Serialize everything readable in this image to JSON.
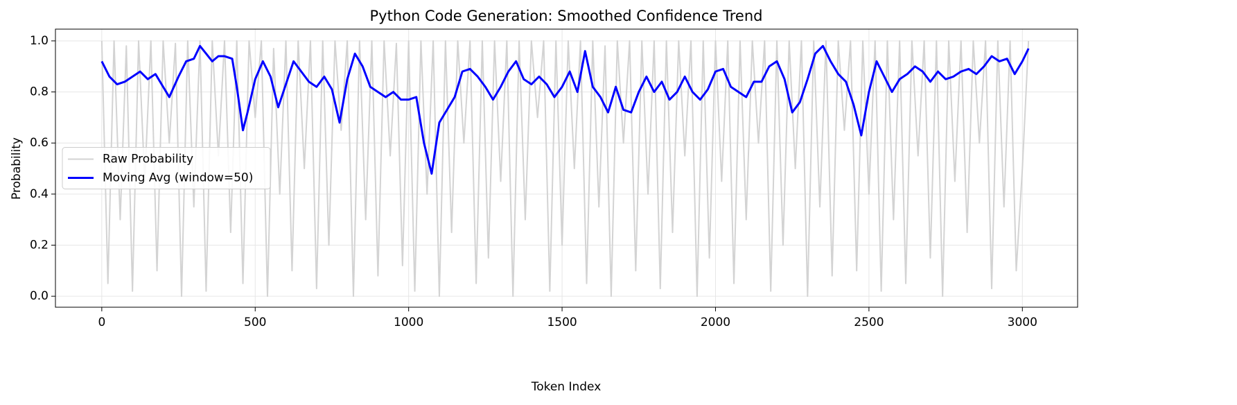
{
  "chart_data": {
    "type": "line",
    "title": "Python Code Generation: Smoothed Confidence Trend",
    "xlabel": "Token Index",
    "ylabel": "Probability",
    "xlim": [
      -151,
      3180
    ],
    "ylim": [
      -0.043,
      1.046
    ],
    "xticks": [
      0,
      500,
      1000,
      1500,
      2000,
      2500,
      3000
    ],
    "yticks": [
      {
        "value": 0,
        "label": "0.0"
      },
      0.2,
      0.4,
      0.6,
      0.8,
      {
        "value": 1,
        "label": "1.0"
      }
    ],
    "grid": true,
    "legend": "center left",
    "series": [
      {
        "name": "Raw Probability",
        "color": "#d3d3d3",
        "x": [
          0,
          20,
          40,
          60,
          80,
          100,
          120,
          140,
          160,
          180,
          200,
          220,
          240,
          260,
          280,
          300,
          320,
          340,
          360,
          380,
          400,
          420,
          440,
          460,
          480,
          500,
          520,
          540,
          560,
          580,
          600,
          620,
          640,
          660,
          680,
          700,
          720,
          740,
          760,
          780,
          800,
          820,
          840,
          860,
          880,
          900,
          920,
          940,
          960,
          980,
          1000,
          1020,
          1040,
          1060,
          1080,
          1100,
          1120,
          1140,
          1160,
          1180,
          1200,
          1220,
          1240,
          1260,
          1280,
          1300,
          1320,
          1340,
          1360,
          1380,
          1400,
          1420,
          1440,
          1460,
          1480,
          1500,
          1520,
          1540,
          1560,
          1580,
          1600,
          1620,
          1640,
          1660,
          1680,
          1700,
          1720,
          1740,
          1760,
          1780,
          1800,
          1820,
          1840,
          1860,
          1880,
          1900,
          1920,
          1940,
          1960,
          1980,
          2000,
          2020,
          2040,
          2060,
          2080,
          2100,
          2120,
          2140,
          2160,
          2180,
          2200,
          2220,
          2240,
          2260,
          2280,
          2300,
          2320,
          2340,
          2360,
          2380,
          2400,
          2420,
          2440,
          2460,
          2480,
          2500,
          2520,
          2540,
          2560,
          2580,
          2600,
          2620,
          2640,
          2660,
          2680,
          2700,
          2720,
          2740,
          2760,
          2780,
          2800,
          2820,
          2840,
          2860,
          2880,
          2900,
          2920,
          2940,
          2960,
          2980,
          3000,
          3020
        ],
        "values": [
          1.0,
          0.05,
          1.0,
          0.3,
          0.98,
          0.02,
          1.0,
          0.45,
          1.0,
          0.1,
          1.0,
          0.6,
          0.99,
          0.0,
          1.0,
          0.35,
          1.0,
          0.02,
          1.0,
          0.55,
          1.0,
          0.25,
          1.0,
          0.05,
          1.0,
          0.7,
          1.0,
          0.0,
          0.97,
          0.4,
          1.0,
          0.1,
          1.0,
          0.5,
          1.0,
          0.03,
          1.0,
          0.2,
          1.0,
          0.65,
          1.0,
          0.0,
          1.0,
          0.3,
          1.0,
          0.08,
          1.0,
          0.55,
          0.99,
          0.12,
          1.0,
          0.02,
          1.0,
          0.4,
          1.0,
          0.0,
          1.0,
          0.25,
          1.0,
          0.6,
          1.0,
          0.05,
          1.0,
          0.15,
          1.0,
          0.45,
          1.0,
          0.0,
          1.0,
          0.3,
          1.0,
          0.7,
          1.0,
          0.02,
          1.0,
          0.2,
          1.0,
          0.5,
          1.0,
          0.05,
          1.0,
          0.35,
          0.98,
          0.0,
          1.0,
          0.6,
          1.0,
          0.1,
          1.0,
          0.4,
          1.0,
          0.03,
          1.0,
          0.25,
          1.0,
          0.55,
          1.0,
          0.0,
          1.0,
          0.15,
          1.0,
          0.45,
          1.0,
          0.05,
          1.0,
          0.3,
          1.0,
          0.6,
          1.0,
          0.02,
          1.0,
          0.2,
          1.0,
          0.5,
          1.0,
          0.0,
          1.0,
          0.35,
          1.0,
          0.08,
          1.0,
          0.65,
          1.0,
          0.1,
          1.0,
          0.4,
          1.0,
          0.02,
          1.0,
          0.3,
          1.0,
          0.05,
          1.0,
          0.55,
          1.0,
          0.15,
          1.0,
          0.0,
          1.0,
          0.45,
          1.0,
          0.25,
          1.0,
          0.6,
          1.0,
          0.03,
          1.0,
          0.35,
          1.0,
          0.1,
          0.5,
          1.0
        ]
      },
      {
        "name": "Moving Avg (window=50)",
        "color": "#0000ff",
        "x": [
          0,
          25,
          50,
          75,
          100,
          125,
          150,
          175,
          200,
          220,
          250,
          275,
          300,
          320,
          340,
          360,
          380,
          400,
          425,
          440,
          460,
          475,
          500,
          525,
          550,
          575,
          600,
          625,
          650,
          675,
          700,
          725,
          750,
          775,
          800,
          825,
          850,
          875,
          900,
          925,
          950,
          975,
          1000,
          1025,
          1050,
          1075,
          1100,
          1125,
          1150,
          1175,
          1200,
          1225,
          1250,
          1275,
          1300,
          1325,
          1350,
          1375,
          1400,
          1425,
          1450,
          1475,
          1500,
          1525,
          1550,
          1575,
          1600,
          1625,
          1650,
          1675,
          1700,
          1725,
          1750,
          1775,
          1800,
          1825,
          1850,
          1875,
          1900,
          1925,
          1950,
          1975,
          2000,
          2025,
          2050,
          2075,
          2100,
          2125,
          2150,
          2175,
          2200,
          2225,
          2250,
          2275,
          2300,
          2325,
          2350,
          2375,
          2400,
          2425,
          2450,
          2475,
          2500,
          2525,
          2550,
          2575,
          2600,
          2625,
          2650,
          2675,
          2700,
          2725,
          2750,
          2775,
          2800,
          2825,
          2850,
          2875,
          2900,
          2925,
          2950,
          2975,
          3000,
          3020
        ],
        "values": [
          0.92,
          0.86,
          0.83,
          0.84,
          0.86,
          0.88,
          0.85,
          0.87,
          0.82,
          0.78,
          0.86,
          0.92,
          0.93,
          0.98,
          0.95,
          0.92,
          0.94,
          0.94,
          0.93,
          0.82,
          0.65,
          0.72,
          0.85,
          0.92,
          0.86,
          0.74,
          0.83,
          0.92,
          0.88,
          0.84,
          0.82,
          0.86,
          0.81,
          0.68,
          0.85,
          0.95,
          0.9,
          0.82,
          0.8,
          0.78,
          0.8,
          0.77,
          0.77,
          0.78,
          0.6,
          0.48,
          0.68,
          0.73,
          0.78,
          0.88,
          0.89,
          0.86,
          0.82,
          0.77,
          0.82,
          0.88,
          0.92,
          0.85,
          0.83,
          0.86,
          0.83,
          0.78,
          0.82,
          0.88,
          0.8,
          0.96,
          0.82,
          0.78,
          0.72,
          0.82,
          0.73,
          0.72,
          0.8,
          0.86,
          0.8,
          0.84,
          0.77,
          0.8,
          0.86,
          0.8,
          0.77,
          0.81,
          0.88,
          0.89,
          0.82,
          0.8,
          0.78,
          0.84,
          0.84,
          0.9,
          0.92,
          0.85,
          0.72,
          0.76,
          0.85,
          0.95,
          0.98,
          0.92,
          0.87,
          0.84,
          0.75,
          0.63,
          0.8,
          0.92,
          0.86,
          0.8,
          0.85,
          0.87,
          0.9,
          0.88,
          0.84,
          0.88,
          0.85,
          0.86,
          0.88,
          0.89,
          0.87,
          0.9,
          0.94,
          0.92,
          0.93,
          0.87,
          0.92,
          0.97
        ]
      }
    ]
  }
}
